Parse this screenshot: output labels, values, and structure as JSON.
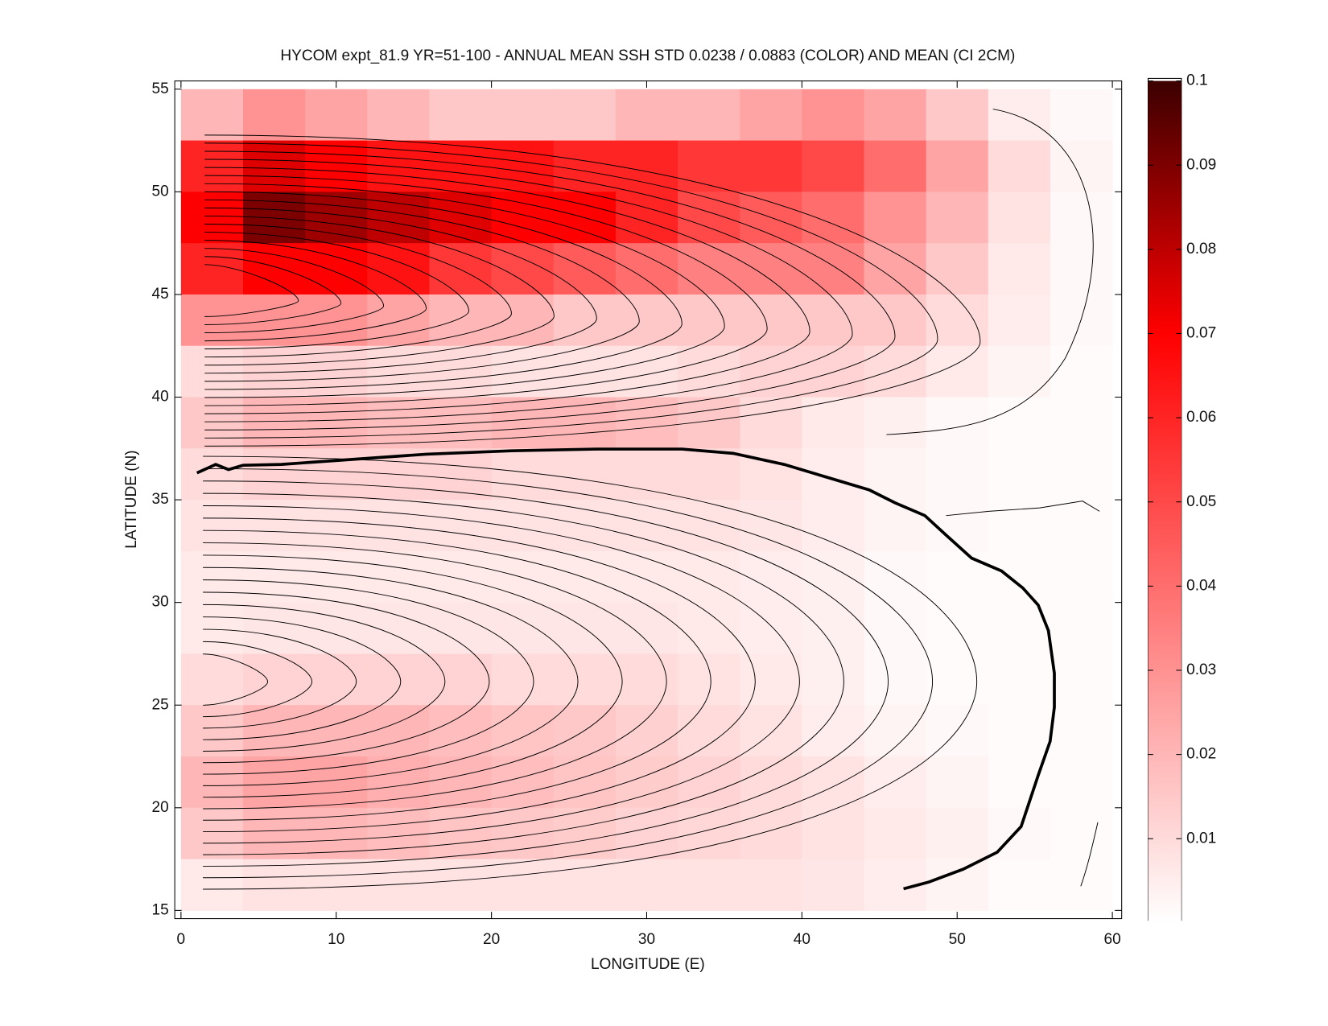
{
  "chart_data": {
    "type": "heatmap",
    "title": "HYCOM expt_81.9 YR=51-100 - ANNUAL MEAN SSH STD 0.0238 / 0.0883 (COLOR) AND MEAN (CI 2CM)",
    "xlabel": "LONGITUDE (E)",
    "ylabel": "LATITUDE (N)",
    "xlim": [
      -0.4,
      60.6
    ],
    "ylim": [
      14.6,
      55.4
    ],
    "xticks": [
      0,
      10,
      20,
      30,
      40,
      50,
      60
    ],
    "yticks": [
      15,
      20,
      25,
      30,
      35,
      40,
      45,
      50,
      55
    ],
    "clim": [
      0,
      0.1
    ],
    "cticks": [
      0.01,
      0.02,
      0.03,
      0.04,
      0.05,
      0.06,
      0.07,
      0.08,
      0.09,
      0.1
    ],
    "colorscale": [
      [
        0,
        "#ffffff"
      ],
      [
        0.07,
        "#ff0000"
      ],
      [
        0.1,
        "#3c0000"
      ]
    ],
    "x": [
      2,
      6,
      10,
      14,
      18,
      22,
      26,
      30,
      34,
      38,
      42,
      46,
      50,
      54,
      58
    ],
    "y": [
      53.75,
      51.25,
      48.75,
      46.25,
      43.75,
      41.25,
      38.75,
      36.25,
      33.75,
      31.25,
      28.75,
      26.25,
      23.75,
      21.25,
      18.75,
      16.25
    ],
    "z": [
      [
        0.02,
        0.03,
        0.025,
        0.02,
        0.015,
        0.015,
        0.015,
        0.02,
        0.02,
        0.025,
        0.03,
        0.025,
        0.015,
        0.005,
        0.002
      ],
      [
        0.06,
        0.075,
        0.07,
        0.065,
        0.065,
        0.065,
        0.06,
        0.06,
        0.055,
        0.055,
        0.05,
        0.04,
        0.025,
        0.01,
        0.003
      ],
      [
        0.07,
        0.09,
        0.085,
        0.08,
        0.075,
        0.07,
        0.07,
        0.06,
        0.05,
        0.045,
        0.04,
        0.03,
        0.02,
        0.008,
        0.002
      ],
      [
        0.06,
        0.07,
        0.07,
        0.065,
        0.055,
        0.05,
        0.045,
        0.04,
        0.035,
        0.035,
        0.035,
        0.025,
        0.015,
        0.006,
        0.002
      ],
      [
        0.03,
        0.03,
        0.03,
        0.025,
        0.02,
        0.02,
        0.015,
        0.015,
        0.015,
        0.015,
        0.015,
        0.015,
        0.01,
        0.005,
        0.002
      ],
      [
        0.01,
        0.012,
        0.012,
        0.01,
        0.01,
        0.008,
        0.008,
        0.008,
        0.01,
        0.012,
        0.012,
        0.01,
        0.006,
        0.003,
        0.001
      ],
      [
        0.015,
        0.02,
        0.02,
        0.018,
        0.018,
        0.02,
        0.02,
        0.018,
        0.015,
        0.01,
        0.006,
        0.004,
        0.002,
        0.001,
        0.001
      ],
      [
        0.01,
        0.012,
        0.012,
        0.012,
        0.012,
        0.01,
        0.01,
        0.01,
        0.01,
        0.008,
        0.005,
        0.003,
        0.002,
        0.001,
        0.001
      ],
      [
        0.008,
        0.008,
        0.008,
        0.008,
        0.008,
        0.008,
        0.008,
        0.008,
        0.008,
        0.007,
        0.005,
        0.003,
        0.002,
        0.001,
        0.001
      ],
      [
        0.006,
        0.006,
        0.006,
        0.006,
        0.006,
        0.006,
        0.006,
        0.006,
        0.006,
        0.005,
        0.004,
        0.002,
        0.001,
        0.001,
        0.001
      ],
      [
        0.006,
        0.007,
        0.007,
        0.007,
        0.007,
        0.007,
        0.007,
        0.007,
        0.006,
        0.005,
        0.004,
        0.002,
        0.001,
        0.001,
        0.001
      ],
      [
        0.01,
        0.012,
        0.012,
        0.012,
        0.012,
        0.01,
        0.01,
        0.01,
        0.008,
        0.006,
        0.004,
        0.002,
        0.001,
        0.001,
        0.001
      ],
      [
        0.015,
        0.02,
        0.02,
        0.02,
        0.018,
        0.016,
        0.015,
        0.013,
        0.01,
        0.008,
        0.005,
        0.003,
        0.002,
        0.001,
        0.001
      ],
      [
        0.02,
        0.025,
        0.025,
        0.022,
        0.02,
        0.018,
        0.016,
        0.014,
        0.012,
        0.01,
        0.008,
        0.005,
        0.003,
        0.001,
        0.001
      ],
      [
        0.015,
        0.02,
        0.02,
        0.018,
        0.016,
        0.015,
        0.014,
        0.012,
        0.011,
        0.01,
        0.008,
        0.006,
        0.004,
        0.002,
        0.001
      ],
      [
        0.006,
        0.008,
        0.008,
        0.008,
        0.008,
        0.008,
        0.008,
        0.008,
        0.008,
        0.008,
        0.007,
        0.005,
        0.003,
        0.001,
        0.001
      ]
    ]
  }
}
